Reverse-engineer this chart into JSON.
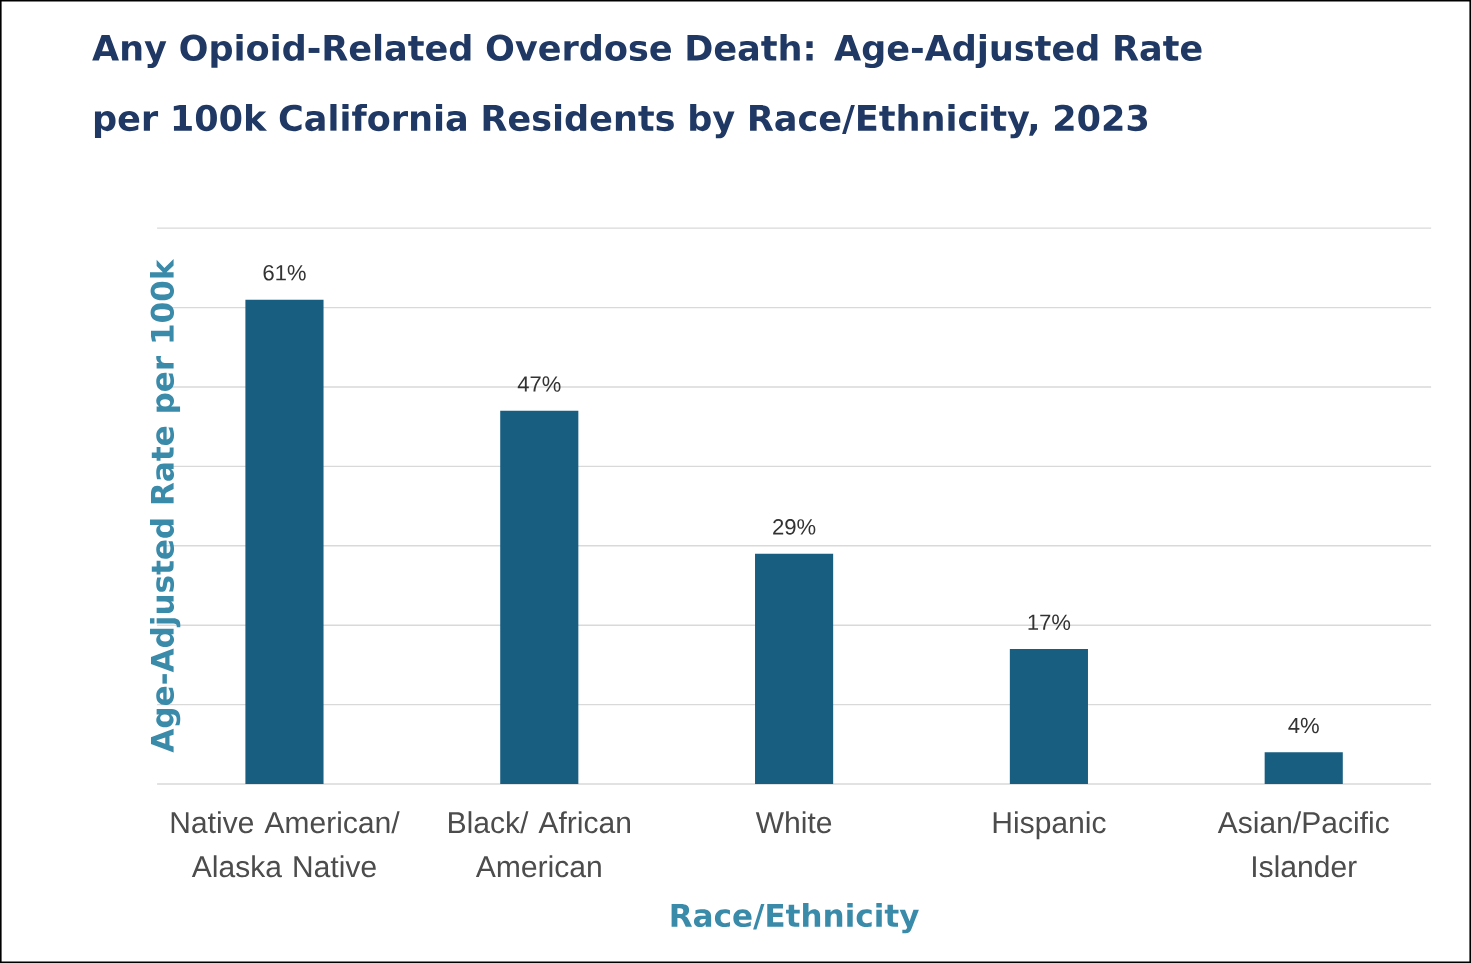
{
  "chart_data": {
    "type": "bar",
    "title": "Any Opioid-Related Overdose Death: Age-Adjusted Rate per 100k California Residents by Race/Ethnicity, 2023",
    "xlabel": "Race/Ethnicity",
    "ylabel": "Age-Adjusted Rate per 100k",
    "categories": [
      "Native American/ Alaska Native",
      "Black/ African American",
      "White",
      "Hispanic",
      "Asian/Pacific Islander"
    ],
    "values": [
      61,
      47,
      29,
      17,
      4
    ],
    "value_labels": [
      "61%",
      "47%",
      "29%",
      "17%",
      "4%"
    ],
    "color": "#175e80",
    "ylim": [
      0,
      70
    ],
    "yticks": [
      {
        "value": 0,
        "label": null
      },
      {
        "value": 10,
        "label": null
      },
      {
        "value": 20,
        "label": null
      },
      {
        "value": 30,
        "label": null
      },
      {
        "value": 40,
        "label": null
      },
      {
        "value": 50,
        "label": null
      },
      {
        "value": 60,
        "label": null
      },
      {
        "value": 70,
        "label": null
      }
    ],
    "tick_labels": "x",
    "grid": "y"
  }
}
